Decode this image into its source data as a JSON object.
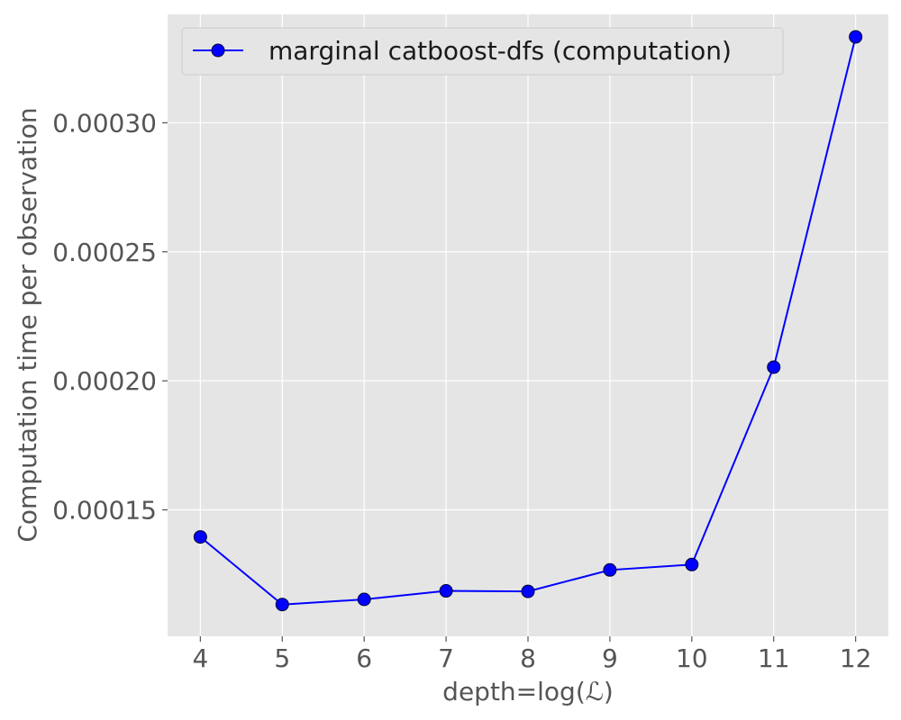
{
  "chart_data": {
    "type": "line",
    "xlabel": "depth=log(ℒ)",
    "ylabel": "Computation time per observation",
    "xlim": [
      3.6,
      12.4
    ],
    "ylim": [
      0.000101,
      0.000342
    ],
    "x_ticks": [
      4,
      5,
      6,
      7,
      8,
      9,
      10,
      11,
      12
    ],
    "x_tick_labels": [
      "4",
      "5",
      "6",
      "7",
      "8",
      "9",
      "10",
      "11",
      "12"
    ],
    "y_ticks": [
      0.00015,
      0.0002,
      0.00025,
      0.0003
    ],
    "y_tick_labels": [
      "0.00015",
      "0.00020",
      "0.00025",
      "0.00030"
    ],
    "grid": true,
    "legend_position": "top-left",
    "series": [
      {
        "name": "marginal catboost-dfs (computation)",
        "color": "#0000ff",
        "marker": "circle",
        "x": [
          4,
          5,
          6,
          7,
          8,
          9,
          10,
          11,
          12
        ],
        "y": [
          0.0001395,
          0.0001133,
          0.0001153,
          0.0001186,
          0.0001184,
          0.0001267,
          0.0001288,
          0.0002053,
          0.0003333
        ]
      }
    ]
  }
}
